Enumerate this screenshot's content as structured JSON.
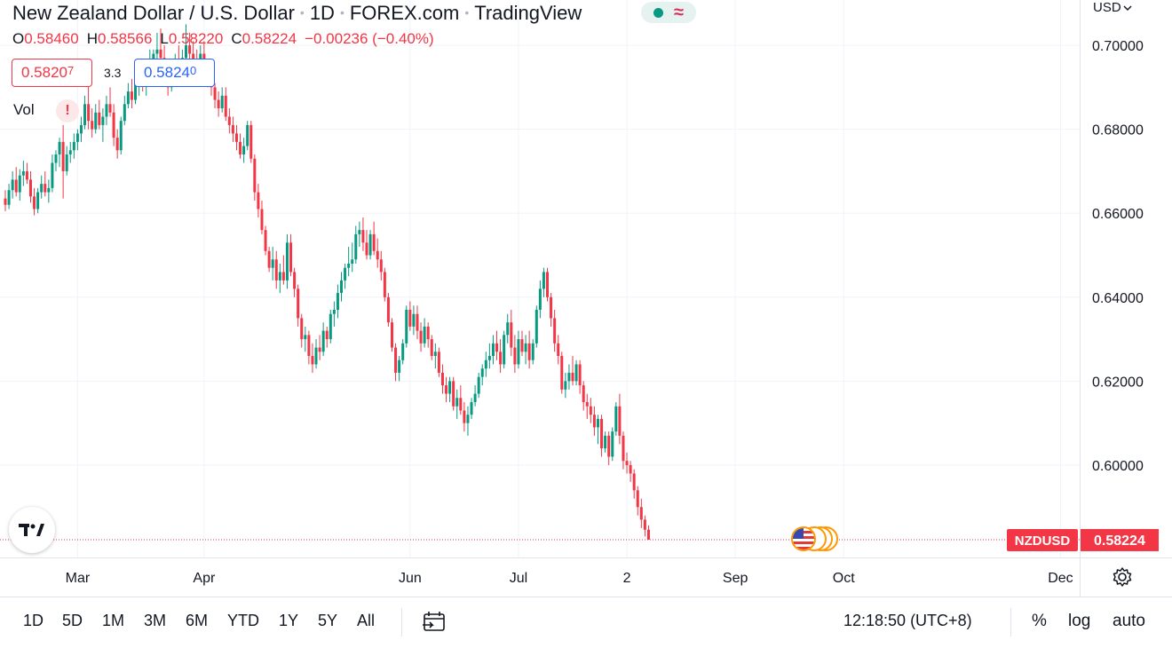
{
  "header": {
    "symbol_name": "New Zealand Dollar / U.S. Dollar",
    "interval": "1D",
    "exchange": "FOREX.com",
    "source": "TradingView"
  },
  "ohlc": {
    "open_key": "O",
    "open": "0.58460",
    "high_key": "H",
    "high": "0.58566",
    "low_key": "L",
    "low": "0.58220",
    "close_key": "C",
    "close": "0.58224",
    "change": "−0.00236 (−0.40%)"
  },
  "trade": {
    "sell_main": "0.5820",
    "sell_small": "7",
    "spread": "3.3",
    "buy_main": "0.5824",
    "buy_small": "0"
  },
  "indicator": {
    "label": "Vol",
    "warning": "!"
  },
  "axis": {
    "currency": "USD"
  },
  "price_tag": {
    "symbol": "NZDUSD",
    "price": "0.58224"
  },
  "colors": {
    "up": "#089981",
    "down": "#f23645",
    "grid": "#f0f3fa",
    "text": "#131722"
  },
  "timeframes": [
    "1D",
    "5D",
    "1M",
    "3M",
    "6M",
    "YTD",
    "1Y",
    "5Y",
    "All"
  ],
  "clock": "12:18:50 (UTC+8)",
  "options": {
    "percent": "%",
    "log": "log",
    "auto": "auto"
  },
  "chart_data": {
    "type": "candlestick",
    "ylim": [
      0.578,
      0.7108
    ],
    "y_ticks": [
      0.7,
      0.68,
      0.66,
      0.64,
      0.62,
      0.6
    ],
    "y_tick_labels": [
      "0.70000",
      "0.68000",
      "0.66000",
      "0.64000",
      "0.62000",
      "0.60000"
    ],
    "x_tick_labels": [
      {
        "label": "Mar",
        "bar": 20
      },
      {
        "label": "Apr",
        "bar": 55
      },
      {
        "label": "Jun",
        "bar": 112
      },
      {
        "label": "Jul",
        "bar": 142
      },
      {
        "label": "2",
        "bar": 172
      },
      {
        "label": "Sep",
        "bar": 202
      },
      {
        "label": "Oct",
        "bar": 232
      },
      {
        "label": "Dec",
        "bar": 292
      }
    ],
    "last_price": 0.58224,
    "candles": [
      [
        0.6635,
        0.6655,
        0.6605,
        0.662
      ],
      [
        0.662,
        0.667,
        0.661,
        0.6655
      ],
      [
        0.6655,
        0.67,
        0.6635,
        0.668
      ],
      [
        0.668,
        0.671,
        0.664,
        0.665
      ],
      [
        0.665,
        0.6705,
        0.663,
        0.669
      ],
      [
        0.669,
        0.6725,
        0.6665,
        0.67
      ],
      [
        0.67,
        0.672,
        0.667,
        0.668
      ],
      [
        0.668,
        0.67,
        0.6625,
        0.664
      ],
      [
        0.664,
        0.666,
        0.6595,
        0.661
      ],
      [
        0.661,
        0.666,
        0.66,
        0.665
      ],
      [
        0.665,
        0.669,
        0.6635,
        0.667
      ],
      [
        0.667,
        0.67,
        0.664,
        0.665
      ],
      [
        0.665,
        0.668,
        0.6625,
        0.666
      ],
      [
        0.666,
        0.674,
        0.665,
        0.672
      ],
      [
        0.672,
        0.675,
        0.67,
        0.674
      ],
      [
        0.674,
        0.678,
        0.671,
        0.677
      ],
      [
        0.677,
        0.681,
        0.6635,
        0.67
      ],
      [
        0.67,
        0.676,
        0.669,
        0.674
      ],
      [
        0.674,
        0.677,
        0.672,
        0.675
      ],
      [
        0.675,
        0.679,
        0.673,
        0.677
      ],
      [
        0.677,
        0.68,
        0.675,
        0.679
      ],
      [
        0.679,
        0.683,
        0.677,
        0.681
      ],
      [
        0.681,
        0.688,
        0.68,
        0.686
      ],
      [
        0.686,
        0.6935,
        0.68,
        0.682
      ],
      [
        0.682,
        0.685,
        0.678,
        0.68
      ],
      [
        0.68,
        0.686,
        0.679,
        0.684
      ],
      [
        0.684,
        0.687,
        0.68,
        0.681
      ],
      [
        0.681,
        0.685,
        0.677,
        0.683
      ],
      [
        0.683,
        0.688,
        0.681,
        0.686
      ],
      [
        0.686,
        0.69,
        0.683,
        0.684
      ],
      [
        0.684,
        0.686,
        0.676,
        0.678
      ],
      [
        0.678,
        0.68,
        0.673,
        0.675
      ],
      [
        0.675,
        0.683,
        0.674,
        0.682
      ],
      [
        0.682,
        0.688,
        0.681,
        0.686
      ],
      [
        0.686,
        0.691,
        0.685,
        0.689
      ],
      [
        0.689,
        0.692,
        0.685,
        0.687
      ],
      [
        0.687,
        0.692,
        0.686,
        0.691
      ],
      [
        0.691,
        0.694,
        0.688,
        0.692
      ],
      [
        0.692,
        0.696,
        0.689,
        0.691
      ],
      [
        0.691,
        0.696,
        0.688,
        0.694
      ],
      [
        0.694,
        0.699,
        0.692,
        0.696
      ],
      [
        0.696,
        0.699,
        0.694,
        0.698
      ],
      [
        0.698,
        0.703,
        0.696,
        0.699
      ],
      [
        0.699,
        0.704,
        0.695,
        0.697
      ],
      [
        0.697,
        0.7,
        0.692,
        0.694
      ],
      [
        0.694,
        0.696,
        0.688,
        0.69
      ],
      [
        0.69,
        0.695,
        0.689,
        0.693
      ],
      [
        0.693,
        0.698,
        0.691,
        0.696
      ],
      [
        0.696,
        0.7,
        0.693,
        0.695
      ],
      [
        0.695,
        0.699,
        0.693,
        0.697
      ],
      [
        0.697,
        0.705,
        0.695,
        0.7
      ],
      [
        0.7,
        0.703,
        0.696,
        0.698
      ],
      [
        0.698,
        0.701,
        0.694,
        0.696
      ],
      [
        0.696,
        0.699,
        0.692,
        0.694
      ],
      [
        0.694,
        0.7,
        0.693,
        0.698
      ],
      [
        0.698,
        0.701,
        0.691,
        0.693
      ],
      [
        0.693,
        0.696,
        0.69,
        0.691
      ],
      [
        0.691,
        0.693,
        0.688,
        0.69
      ],
      [
        0.69,
        0.691,
        0.685,
        0.687
      ],
      [
        0.687,
        0.689,
        0.683,
        0.685
      ],
      [
        0.685,
        0.69,
        0.684,
        0.688
      ],
      [
        0.688,
        0.69,
        0.682,
        0.683
      ],
      [
        0.683,
        0.685,
        0.679,
        0.681
      ],
      [
        0.681,
        0.683,
        0.677,
        0.679
      ],
      [
        0.679,
        0.681,
        0.675,
        0.677
      ],
      [
        0.677,
        0.679,
        0.673,
        0.674
      ],
      [
        0.674,
        0.678,
        0.672,
        0.676
      ],
      [
        0.676,
        0.682,
        0.675,
        0.681
      ],
      [
        0.681,
        0.682,
        0.672,
        0.673
      ],
      [
        0.673,
        0.674,
        0.663,
        0.665
      ],
      [
        0.665,
        0.667,
        0.659,
        0.661
      ],
      [
        0.661,
        0.663,
        0.655,
        0.656
      ],
      [
        0.656,
        0.657,
        0.65,
        0.651
      ],
      [
        0.651,
        0.652,
        0.646,
        0.647
      ],
      [
        0.647,
        0.652,
        0.644,
        0.649
      ],
      [
        0.649,
        0.651,
        0.642,
        0.644
      ],
      [
        0.644,
        0.648,
        0.641,
        0.646
      ],
      [
        0.646,
        0.65,
        0.643,
        0.644
      ],
      [
        0.644,
        0.655,
        0.642,
        0.653
      ],
      [
        0.653,
        0.655,
        0.645,
        0.646
      ],
      [
        0.646,
        0.647,
        0.64,
        0.642
      ],
      [
        0.642,
        0.643,
        0.633,
        0.635
      ],
      [
        0.635,
        0.636,
        0.628,
        0.63
      ],
      [
        0.63,
        0.633,
        0.627,
        0.631
      ],
      [
        0.631,
        0.632,
        0.624,
        0.626
      ],
      [
        0.626,
        0.629,
        0.622,
        0.624
      ],
      [
        0.624,
        0.63,
        0.623,
        0.628
      ],
      [
        0.628,
        0.631,
        0.625,
        0.627
      ],
      [
        0.627,
        0.634,
        0.626,
        0.632
      ],
      [
        0.632,
        0.633,
        0.628,
        0.63
      ],
      [
        0.63,
        0.637,
        0.629,
        0.636
      ],
      [
        0.636,
        0.639,
        0.633,
        0.637
      ],
      [
        0.637,
        0.643,
        0.635,
        0.641
      ],
      [
        0.641,
        0.646,
        0.639,
        0.644
      ],
      [
        0.644,
        0.648,
        0.642,
        0.647
      ],
      [
        0.647,
        0.652,
        0.645,
        0.648
      ],
      [
        0.648,
        0.653,
        0.646,
        0.649
      ],
      [
        0.649,
        0.657,
        0.648,
        0.655
      ],
      [
        0.655,
        0.658,
        0.652,
        0.656
      ],
      [
        0.656,
        0.659,
        0.651,
        0.653
      ],
      [
        0.653,
        0.656,
        0.649,
        0.65
      ],
      [
        0.65,
        0.656,
        0.649,
        0.655
      ],
      [
        0.655,
        0.658,
        0.65,
        0.651
      ],
      [
        0.651,
        0.654,
        0.647,
        0.649
      ],
      [
        0.649,
        0.651,
        0.644,
        0.646
      ],
      [
        0.646,
        0.647,
        0.639,
        0.64
      ],
      [
        0.64,
        0.641,
        0.633,
        0.634
      ],
      [
        0.634,
        0.635,
        0.627,
        0.628
      ],
      [
        0.628,
        0.629,
        0.62,
        0.622
      ],
      [
        0.622,
        0.626,
        0.62,
        0.625
      ],
      [
        0.625,
        0.63,
        0.624,
        0.629
      ],
      [
        0.629,
        0.638,
        0.628,
        0.637
      ],
      [
        0.637,
        0.639,
        0.632,
        0.633
      ],
      [
        0.633,
        0.638,
        0.631,
        0.636
      ],
      [
        0.636,
        0.638,
        0.63,
        0.632
      ],
      [
        0.632,
        0.634,
        0.627,
        0.629
      ],
      [
        0.629,
        0.635,
        0.628,
        0.633
      ],
      [
        0.633,
        0.634,
        0.628,
        0.63
      ],
      [
        0.63,
        0.631,
        0.625,
        0.626
      ],
      [
        0.626,
        0.629,
        0.623,
        0.627
      ],
      [
        0.627,
        0.628,
        0.621,
        0.622
      ],
      [
        0.622,
        0.624,
        0.617,
        0.619
      ],
      [
        0.619,
        0.621,
        0.615,
        0.617
      ],
      [
        0.617,
        0.621,
        0.615,
        0.62
      ],
      [
        0.62,
        0.621,
        0.613,
        0.614
      ],
      [
        0.614,
        0.618,
        0.611,
        0.616
      ],
      [
        0.616,
        0.619,
        0.612,
        0.613
      ],
      [
        0.613,
        0.615,
        0.608,
        0.61
      ],
      [
        0.61,
        0.614,
        0.607,
        0.612
      ],
      [
        0.612,
        0.616,
        0.611,
        0.615
      ],
      [
        0.615,
        0.619,
        0.614,
        0.617
      ],
      [
        0.617,
        0.622,
        0.616,
        0.621
      ],
      [
        0.621,
        0.624,
        0.619,
        0.623
      ],
      [
        0.623,
        0.627,
        0.621,
        0.625
      ],
      [
        0.625,
        0.629,
        0.623,
        0.626
      ],
      [
        0.626,
        0.631,
        0.624,
        0.629
      ],
      [
        0.629,
        0.632,
        0.625,
        0.627
      ],
      [
        0.627,
        0.63,
        0.622,
        0.624
      ],
      [
        0.624,
        0.632,
        0.623,
        0.631
      ],
      [
        0.631,
        0.636,
        0.629,
        0.634
      ],
      [
        0.634,
        0.637,
        0.626,
        0.628
      ],
      [
        0.628,
        0.631,
        0.622,
        0.624
      ],
      [
        0.624,
        0.632,
        0.623,
        0.63
      ],
      [
        0.63,
        0.632,
        0.626,
        0.627
      ],
      [
        0.627,
        0.631,
        0.624,
        0.629
      ],
      [
        0.629,
        0.632,
        0.623,
        0.625
      ],
      [
        0.625,
        0.63,
        0.624,
        0.629
      ],
      [
        0.629,
        0.638,
        0.628,
        0.637
      ],
      [
        0.637,
        0.644,
        0.635,
        0.642
      ],
      [
        0.642,
        0.647,
        0.64,
        0.646
      ],
      [
        0.646,
        0.647,
        0.639,
        0.64
      ],
      [
        0.64,
        0.641,
        0.633,
        0.635
      ],
      [
        0.635,
        0.637,
        0.627,
        0.629
      ],
      [
        0.629,
        0.631,
        0.624,
        0.626
      ],
      [
        0.626,
        0.627,
        0.617,
        0.618
      ],
      [
        0.618,
        0.622,
        0.616,
        0.62
      ],
      [
        0.62,
        0.624,
        0.618,
        0.622
      ],
      [
        0.622,
        0.626,
        0.619,
        0.62
      ],
      [
        0.62,
        0.625,
        0.619,
        0.624
      ],
      [
        0.624,
        0.625,
        0.617,
        0.619
      ],
      [
        0.619,
        0.62,
        0.613,
        0.615
      ],
      [
        0.615,
        0.617,
        0.611,
        0.614
      ],
      [
        0.614,
        0.616,
        0.61,
        0.612
      ],
      [
        0.612,
        0.614,
        0.607,
        0.609
      ],
      [
        0.609,
        0.612,
        0.605,
        0.611
      ],
      [
        0.611,
        0.612,
        0.602,
        0.604
      ],
      [
        0.604,
        0.608,
        0.603,
        0.607
      ],
      [
        0.607,
        0.608,
        0.6,
        0.602
      ],
      [
        0.602,
        0.609,
        0.601,
        0.608
      ],
      [
        0.608,
        0.615,
        0.607,
        0.614
      ],
      [
        0.614,
        0.617,
        0.605,
        0.607
      ],
      [
        0.607,
        0.608,
        0.599,
        0.601
      ],
      [
        0.601,
        0.603,
        0.598,
        0.6
      ],
      [
        0.6,
        0.601,
        0.596,
        0.598
      ],
      [
        0.598,
        0.599,
        0.592,
        0.594
      ],
      [
        0.594,
        0.595,
        0.588,
        0.59
      ],
      [
        0.59,
        0.592,
        0.585,
        0.587
      ],
      [
        0.587,
        0.588,
        0.583,
        0.5846
      ],
      [
        0.5846,
        0.58566,
        0.5822,
        0.58224
      ]
    ]
  }
}
